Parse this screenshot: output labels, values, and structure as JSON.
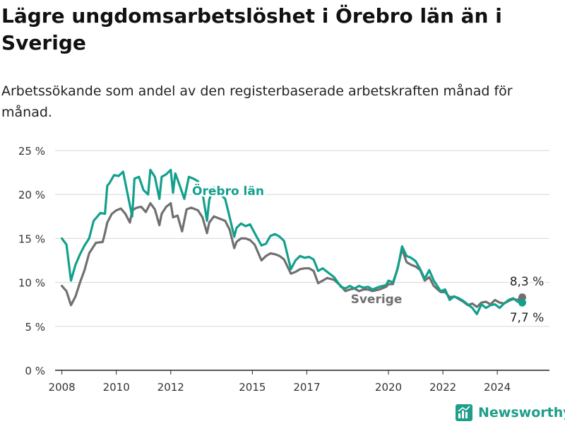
{
  "title": "Lägre ungdomsarbetslöshet i Örebro län än i Sverige",
  "subtitle": "Arbetssökande som andel av den registerbaserade arbetskraften månad för månad.",
  "brand": "Newsworthy",
  "colors": {
    "orebro": "#12a08d",
    "sverige": "#707070",
    "grid": "#d7d7d7",
    "axis": "#222222",
    "brand": "#1f9e8a"
  },
  "chart_data": {
    "type": "line",
    "title": "Lägre ungdomsarbetslöshet i Örebro län än i Sverige",
    "subtitle": "Arbetssökande som andel av den registerbaserade arbetskraften månad för månad.",
    "xlabel": "",
    "ylabel": "",
    "ylim": [
      0,
      25
    ],
    "xlim": [
      "2007-10",
      "2025-12"
    ],
    "yticks": [
      0,
      5,
      10,
      15,
      20,
      25
    ],
    "ytick_labels": [
      "0 %",
      "5 %",
      "10 %",
      "15 %",
      "20 %",
      "25 %"
    ],
    "xticks": [
      "2008-01",
      "2010-01",
      "2012-01",
      "2015-01",
      "2017-01",
      "2020-01",
      "2022-01",
      "2024-01"
    ],
    "xtick_labels": [
      "2008",
      "2010",
      "2012",
      "2015",
      "2017",
      "2020",
      "2022",
      "2024"
    ],
    "grid": true,
    "legend": "inline labels",
    "series": [
      {
        "name": "Örebro län",
        "color": "#12a08d",
        "points": [
          [
            "2008-01",
            15.0
          ],
          [
            "2008-03",
            14.3
          ],
          [
            "2008-05",
            10.2
          ],
          [
            "2008-07",
            12.0
          ],
          [
            "2008-09",
            13.2
          ],
          [
            "2008-11",
            14.2
          ],
          [
            "2009-01",
            15.0
          ],
          [
            "2009-03",
            17.0
          ],
          [
            "2009-06",
            17.9
          ],
          [
            "2009-08",
            17.8
          ],
          [
            "2009-09",
            21.0
          ],
          [
            "2009-10",
            21.3
          ],
          [
            "2009-12",
            22.2
          ],
          [
            "2010-02",
            22.1
          ],
          [
            "2010-04",
            22.6
          ],
          [
            "2010-06",
            20.0
          ],
          [
            "2010-08",
            17.5
          ],
          [
            "2010-09",
            21.8
          ],
          [
            "2010-11",
            22.0
          ],
          [
            "2011-01",
            20.5
          ],
          [
            "2011-03",
            20.0
          ],
          [
            "2011-04",
            22.8
          ],
          [
            "2011-06",
            22.0
          ],
          [
            "2011-08",
            19.5
          ],
          [
            "2011-09",
            22.0
          ],
          [
            "2011-11",
            22.3
          ],
          [
            "2012-01",
            22.8
          ],
          [
            "2012-02",
            20.2
          ],
          [
            "2012-03",
            22.4
          ],
          [
            "2012-05",
            21.0
          ],
          [
            "2012-07",
            19.5
          ],
          [
            "2012-09",
            22.0
          ],
          [
            "2012-11",
            21.8
          ],
          [
            "2013-01",
            21.5
          ],
          [
            "2013-03",
            20.2
          ],
          [
            "2013-05",
            17.0
          ],
          [
            "2013-06",
            19.4
          ],
          [
            "2013-08",
            20.8
          ],
          [
            "2013-10",
            20.2
          ],
          [
            "2014-01",
            19.5
          ],
          [
            "2014-03",
            17.4
          ],
          [
            "2014-05",
            15.2
          ],
          [
            "2014-06",
            16.2
          ],
          [
            "2014-08",
            16.7
          ],
          [
            "2014-10",
            16.4
          ],
          [
            "2014-12",
            16.6
          ],
          [
            "2015-02",
            15.6
          ],
          [
            "2015-05",
            14.2
          ],
          [
            "2015-07",
            14.4
          ],
          [
            "2015-09",
            15.3
          ],
          [
            "2015-11",
            15.5
          ],
          [
            "2016-01",
            15.2
          ],
          [
            "2016-03",
            14.7
          ],
          [
            "2016-06",
            11.5
          ],
          [
            "2016-08",
            12.5
          ],
          [
            "2016-10",
            13.0
          ],
          [
            "2016-12",
            12.8
          ],
          [
            "2017-02",
            12.9
          ],
          [
            "2017-04",
            12.6
          ],
          [
            "2017-06",
            11.3
          ],
          [
            "2017-08",
            11.6
          ],
          [
            "2017-10",
            11.2
          ],
          [
            "2018-01",
            10.6
          ],
          [
            "2018-04",
            9.5
          ],
          [
            "2018-06",
            9.3
          ],
          [
            "2018-08",
            9.6
          ],
          [
            "2018-10",
            9.3
          ],
          [
            "2018-12",
            9.6
          ],
          [
            "2019-02",
            9.4
          ],
          [
            "2019-04",
            9.5
          ],
          [
            "2019-06",
            9.2
          ],
          [
            "2019-09",
            9.5
          ],
          [
            "2019-12",
            9.7
          ],
          [
            "2020-01",
            10.2
          ],
          [
            "2020-03",
            10.0
          ],
          [
            "2020-05",
            11.5
          ],
          [
            "2020-07",
            14.1
          ],
          [
            "2020-09",
            13.0
          ],
          [
            "2020-11",
            12.8
          ],
          [
            "2021-01",
            12.4
          ],
          [
            "2021-03",
            11.5
          ],
          [
            "2021-05",
            10.4
          ],
          [
            "2021-07",
            11.4
          ],
          [
            "2021-09",
            10.2
          ],
          [
            "2021-12",
            9.0
          ],
          [
            "2022-02",
            9.2
          ],
          [
            "2022-04",
            8.0
          ],
          [
            "2022-06",
            8.4
          ],
          [
            "2022-08",
            8.2
          ],
          [
            "2022-10",
            7.9
          ],
          [
            "2022-12",
            7.5
          ],
          [
            "2023-02",
            7.1
          ],
          [
            "2023-04",
            6.4
          ],
          [
            "2023-06",
            7.5
          ],
          [
            "2023-08",
            7.1
          ],
          [
            "2023-10",
            7.4
          ],
          [
            "2023-12",
            7.5
          ],
          [
            "2024-02",
            7.1
          ],
          [
            "2024-04",
            7.6
          ],
          [
            "2024-06",
            8.0
          ],
          [
            "2024-08",
            8.2
          ],
          [
            "2024-10",
            7.8
          ],
          [
            "2024-12",
            7.7
          ]
        ]
      },
      {
        "name": "Sverige",
        "color": "#707070",
        "points": [
          [
            "2008-01",
            9.6
          ],
          [
            "2008-03",
            9.0
          ],
          [
            "2008-05",
            7.4
          ],
          [
            "2008-07",
            8.4
          ],
          [
            "2008-09",
            10.0
          ],
          [
            "2008-11",
            11.4
          ],
          [
            "2009-01",
            13.3
          ],
          [
            "2009-04",
            14.5
          ],
          [
            "2009-07",
            14.6
          ],
          [
            "2009-08",
            15.6
          ],
          [
            "2009-09",
            16.8
          ],
          [
            "2009-11",
            17.8
          ],
          [
            "2010-01",
            18.2
          ],
          [
            "2010-03",
            18.4
          ],
          [
            "2010-05",
            17.8
          ],
          [
            "2010-07",
            16.8
          ],
          [
            "2010-08",
            18.2
          ],
          [
            "2010-10",
            18.5
          ],
          [
            "2010-12",
            18.6
          ],
          [
            "2011-02",
            18.0
          ],
          [
            "2011-04",
            19.0
          ],
          [
            "2011-06",
            18.3
          ],
          [
            "2011-08",
            16.5
          ],
          [
            "2011-09",
            17.8
          ],
          [
            "2011-11",
            18.6
          ],
          [
            "2012-01",
            19.0
          ],
          [
            "2012-02",
            17.4
          ],
          [
            "2012-04",
            17.6
          ],
          [
            "2012-06",
            15.8
          ],
          [
            "2012-08",
            18.3
          ],
          [
            "2012-10",
            18.5
          ],
          [
            "2013-01",
            18.2
          ],
          [
            "2013-03",
            17.4
          ],
          [
            "2013-05",
            15.6
          ],
          [
            "2013-06",
            16.8
          ],
          [
            "2013-08",
            17.5
          ],
          [
            "2013-10",
            17.3
          ],
          [
            "2014-01",
            17.0
          ],
          [
            "2014-03",
            16.0
          ],
          [
            "2014-05",
            13.9
          ],
          [
            "2014-06",
            14.6
          ],
          [
            "2014-08",
            15.0
          ],
          [
            "2014-10",
            15.0
          ],
          [
            "2014-12",
            14.8
          ],
          [
            "2015-02",
            14.3
          ],
          [
            "2015-05",
            12.5
          ],
          [
            "2015-07",
            13.0
          ],
          [
            "2015-09",
            13.3
          ],
          [
            "2015-11",
            13.2
          ],
          [
            "2016-01",
            13.0
          ],
          [
            "2016-03",
            12.6
          ],
          [
            "2016-06",
            11.0
          ],
          [
            "2016-08",
            11.2
          ],
          [
            "2016-10",
            11.5
          ],
          [
            "2016-12",
            11.6
          ],
          [
            "2017-02",
            11.6
          ],
          [
            "2017-04",
            11.3
          ],
          [
            "2017-06",
            9.9
          ],
          [
            "2017-08",
            10.2
          ],
          [
            "2017-10",
            10.5
          ],
          [
            "2018-01",
            10.3
          ],
          [
            "2018-04",
            9.6
          ],
          [
            "2018-06",
            9.0
          ],
          [
            "2018-08",
            9.2
          ],
          [
            "2018-10",
            9.3
          ],
          [
            "2018-12",
            9.0
          ],
          [
            "2019-02",
            9.2
          ],
          [
            "2019-04",
            9.2
          ],
          [
            "2019-06",
            9.0
          ],
          [
            "2019-09",
            9.2
          ],
          [
            "2019-12",
            9.5
          ],
          [
            "2020-01",
            9.8
          ],
          [
            "2020-03",
            9.8
          ],
          [
            "2020-05",
            11.6
          ],
          [
            "2020-07",
            13.8
          ],
          [
            "2020-09",
            12.3
          ],
          [
            "2020-11",
            12.0
          ],
          [
            "2021-01",
            11.8
          ],
          [
            "2021-03",
            11.4
          ],
          [
            "2021-05",
            10.2
          ],
          [
            "2021-07",
            10.6
          ],
          [
            "2021-09",
            9.6
          ],
          [
            "2021-12",
            8.9
          ],
          [
            "2022-02",
            8.9
          ],
          [
            "2022-04",
            8.3
          ],
          [
            "2022-06",
            8.4
          ],
          [
            "2022-08",
            8.1
          ],
          [
            "2022-10",
            7.8
          ],
          [
            "2022-12",
            7.4
          ],
          [
            "2023-02",
            7.6
          ],
          [
            "2023-04",
            7.2
          ],
          [
            "2023-06",
            7.7
          ],
          [
            "2023-08",
            7.8
          ],
          [
            "2023-10",
            7.5
          ],
          [
            "2023-12",
            8.0
          ],
          [
            "2024-02",
            7.7
          ],
          [
            "2024-04",
            7.6
          ],
          [
            "2024-06",
            7.9
          ],
          [
            "2024-08",
            8.1
          ],
          [
            "2024-10",
            8.0
          ],
          [
            "2024-12",
            8.3
          ]
        ]
      }
    ],
    "end_labels": {
      "sverige": "8,3 %",
      "orebro": "7,7 %"
    }
  }
}
